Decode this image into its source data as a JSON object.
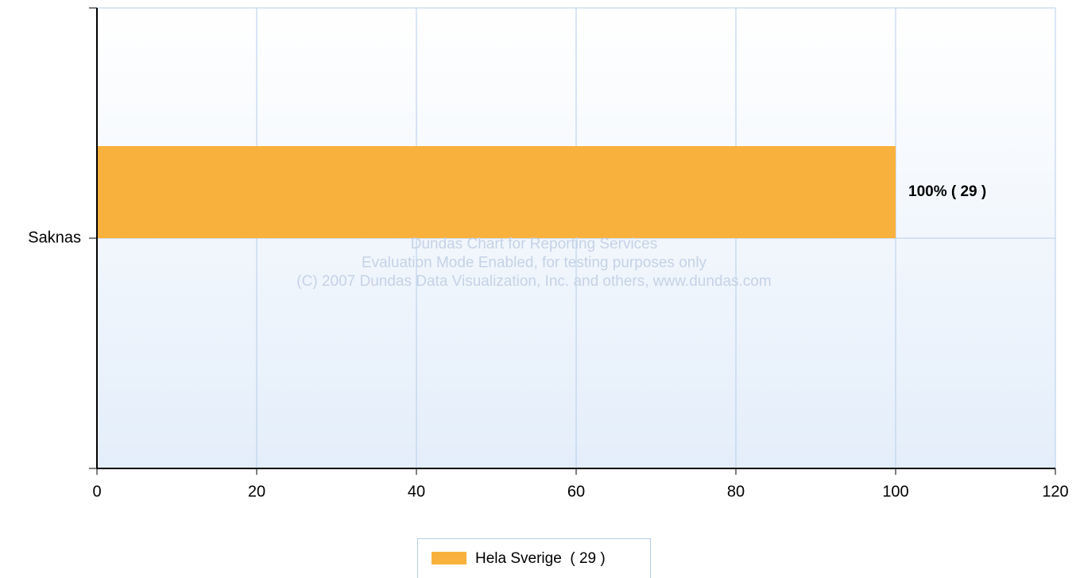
{
  "chart_data": {
    "type": "bar",
    "orientation": "horizontal",
    "categories": [
      "Saknas"
    ],
    "series": [
      {
        "name": "Hela Sverige  ( 29 )",
        "color": "#f9b13d",
        "values": [
          100
        ],
        "value_labels": [
          "100% ( 29 )"
        ]
      }
    ],
    "xlim": [
      0,
      120
    ],
    "xticks": [
      0,
      20,
      40,
      60,
      80,
      100,
      120
    ],
    "grid": true,
    "annotations": [
      "Dundas Chart for Reporting Services",
      "Evaluation Mode Enabled, for testing purposes only",
      "(C) 2007 Dundas Data Visualization, Inc. and others, www.dundas.com"
    ]
  }
}
